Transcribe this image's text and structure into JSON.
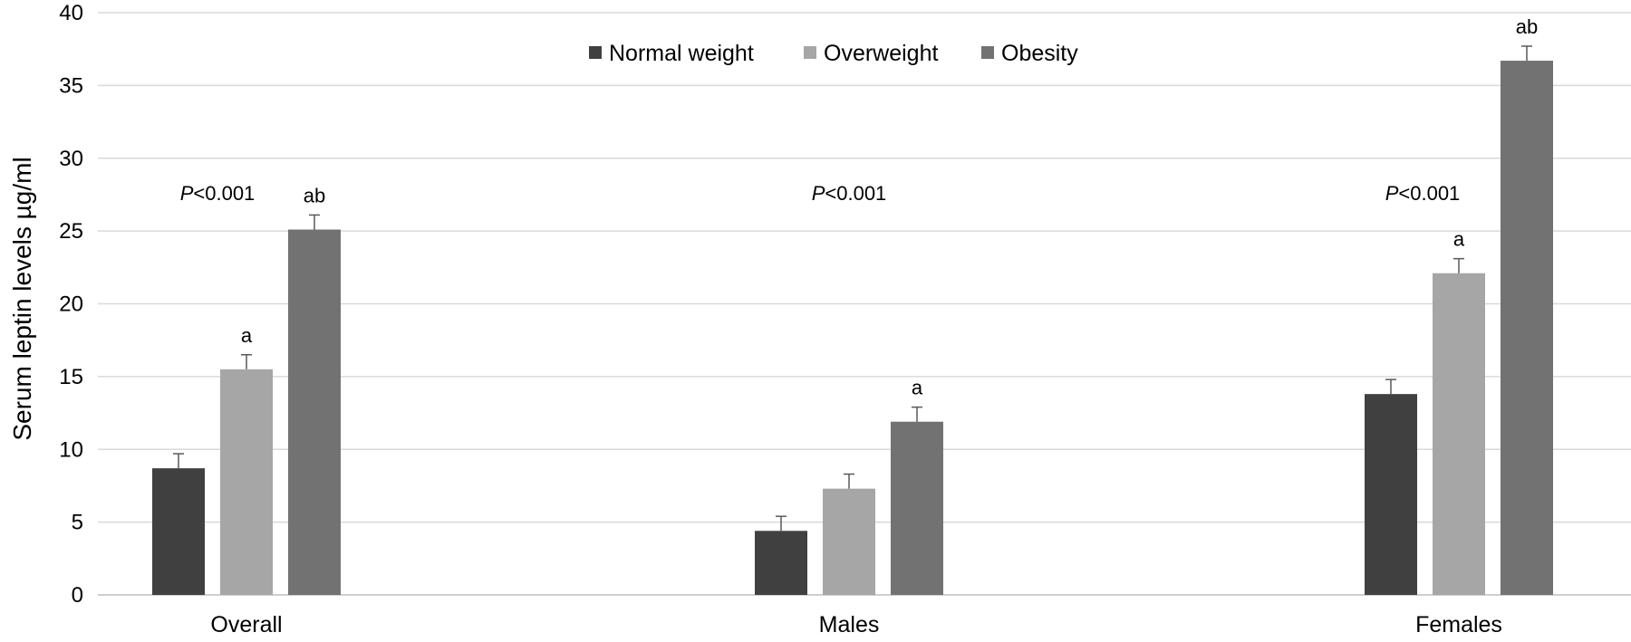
{
  "chart_data": {
    "type": "bar",
    "title": "",
    "xlabel": "",
    "ylabel": "Serum leptin levels µg/ml",
    "ylim": [
      0,
      40
    ],
    "yticks": [
      0,
      5,
      10,
      15,
      20,
      25,
      30,
      35,
      40
    ],
    "grid": true,
    "legend_position": "top-center",
    "categories": [
      "Overall",
      "Males",
      "Females"
    ],
    "series": [
      {
        "name": "Normal weight",
        "color": "#404040",
        "values": [
          8.7,
          4.4,
          13.8
        ],
        "errors": [
          1.0,
          1.0,
          1.0
        ],
        "annotations": [
          "",
          "",
          ""
        ]
      },
      {
        "name": "Overweight",
        "color": "#a6a6a6",
        "values": [
          15.5,
          7.3,
          22.1
        ],
        "errors": [
          1.0,
          1.0,
          1.0
        ],
        "annotations": [
          "a",
          "",
          "a"
        ]
      },
      {
        "name": "Obesity",
        "color": "#727272",
        "values": [
          25.1,
          11.9,
          36.7
        ],
        "errors": [
          1.0,
          1.0,
          1.0
        ],
        "annotations": [
          "ab",
          "a",
          "ab"
        ]
      }
    ],
    "group_annotations": [
      {
        "italic": "P",
        "rest": "<0.001"
      },
      {
        "italic": "P",
        "rest": "<0.001"
      },
      {
        "italic": "P",
        "rest": "<0.001"
      }
    ]
  }
}
